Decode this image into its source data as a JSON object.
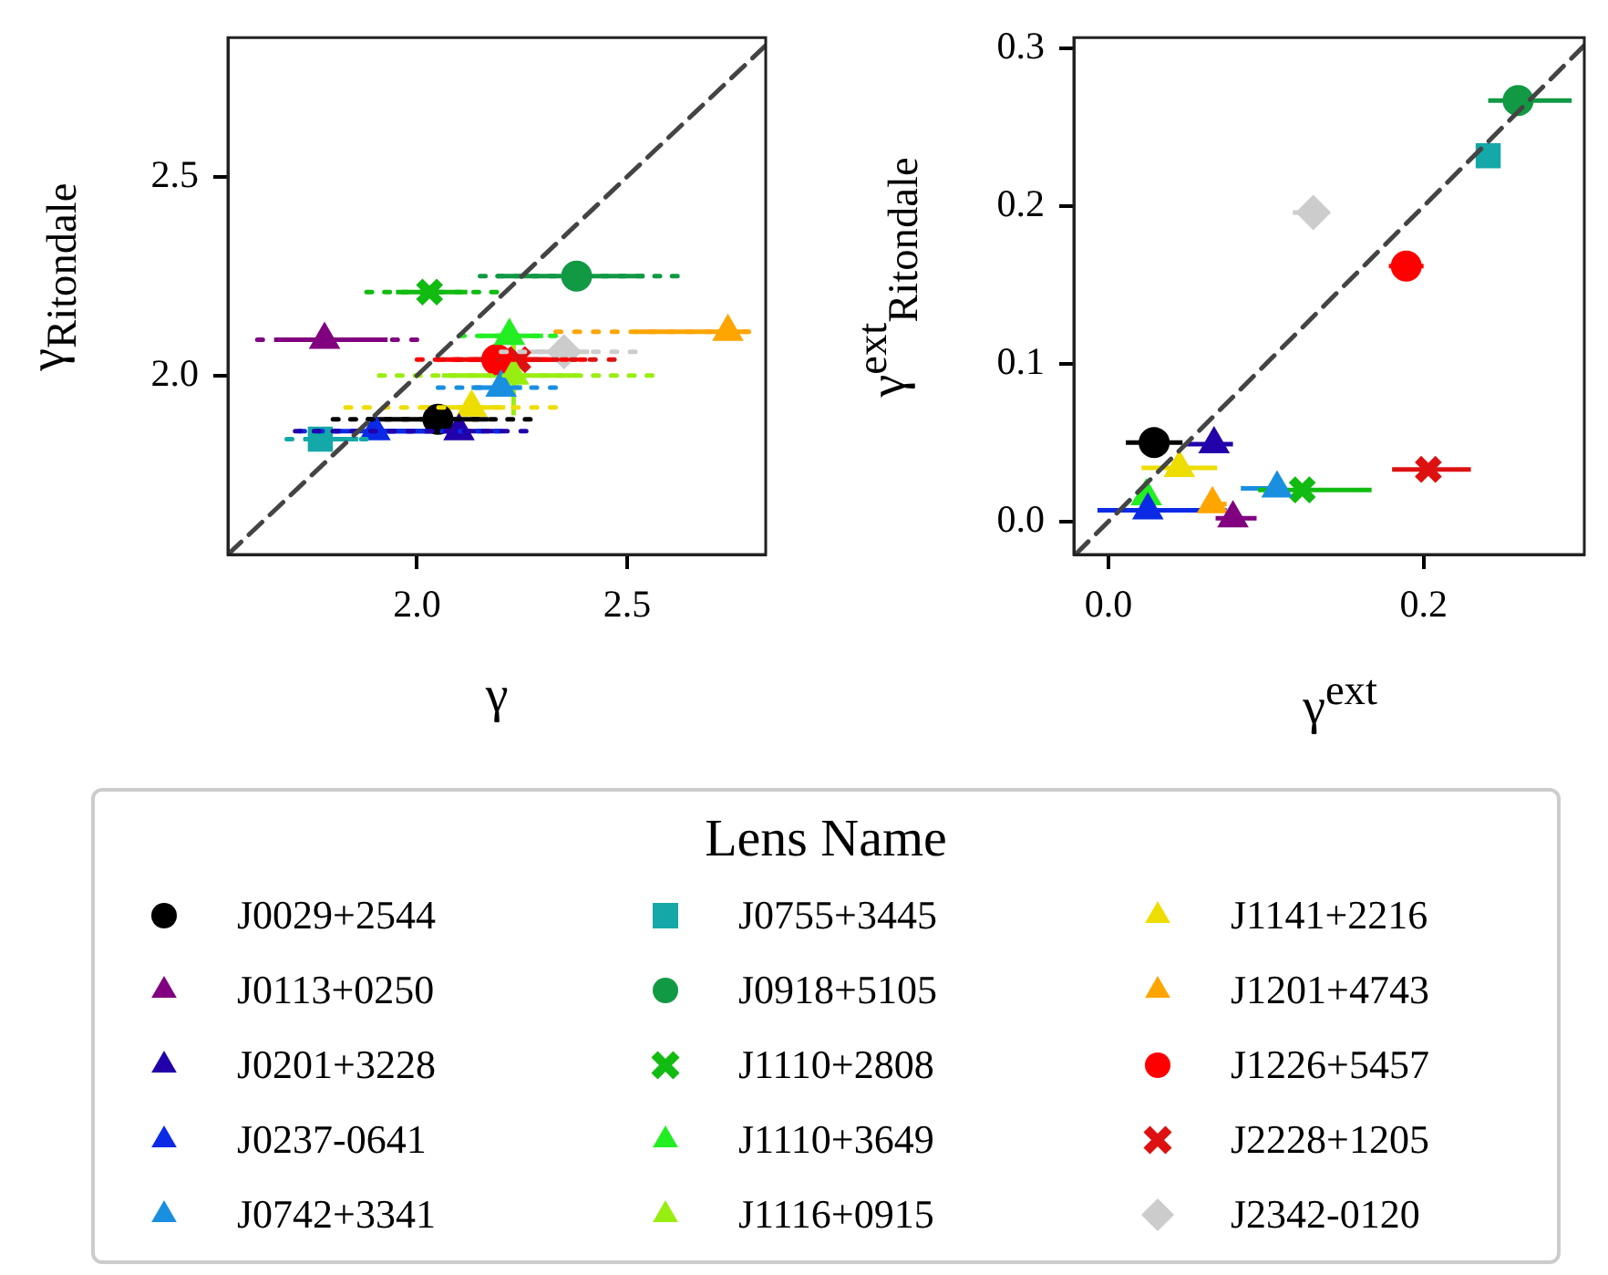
{
  "chart_data": [
    {
      "type": "scatter",
      "xlabel": "γ",
      "ylabel": "γ$_{Ritondale}$",
      "xlim": [
        1.55,
        2.83
      ],
      "ylim": [
        1.55,
        2.85
      ],
      "xticks": [
        {
          "value": 2,
          "label": "2.0"
        },
        2.5
      ],
      "yticks": [
        {
          "value": 2,
          "label": "2.0"
        },
        2.5
      ],
      "grid": false,
      "legend": "bottom",
      "legend_title": "Lens Name",
      "series": [
        {
          "type": "line",
          "color": "#444444",
          "line_style": "dashed",
          "marker": "none",
          "x": [
            1.55,
            2.83
          ],
          "values": [
            1.55,
            2.83
          ]
        },
        {
          "type": "line",
          "color": "#000000",
          "marker": "none",
          "line_style": "dotted",
          "x": [
            1.8,
            2.27
          ],
          "values": [
            1.89,
            1.89
          ]
        },
        {
          "type": "line",
          "color": "#800080",
          "marker": "none",
          "line_style": "dotted",
          "x": [
            1.62,
            2.0
          ],
          "values": [
            2.09,
            2.09
          ]
        },
        {
          "type": "line",
          "color": "#2200aa",
          "marker": "none",
          "line_style": "dotted",
          "x": [
            1.71,
            2.26
          ],
          "values": [
            1.86,
            1.86
          ]
        },
        {
          "type": "line",
          "color": "#0a2ae6",
          "marker": "none",
          "line_style": "dotted",
          "x": [
            1.72,
            2.2
          ],
          "values": [
            1.86,
            1.86
          ]
        },
        {
          "type": "line",
          "color": "#1a8fe0",
          "marker": "none",
          "line_style": "dotted",
          "x": [
            2.05,
            2.33
          ],
          "values": [
            1.97,
            1.97
          ]
        },
        {
          "type": "line",
          "color": "#14a8a8",
          "marker": "none",
          "line_style": "dotted",
          "x": [
            1.69,
            1.88
          ],
          "values": [
            1.84,
            1.84
          ]
        },
        {
          "type": "line",
          "color": "#119944",
          "marker": "none",
          "line_style": "dotted",
          "x": [
            2.15,
            2.62
          ],
          "values": [
            2.25,
            2.25
          ]
        },
        {
          "type": "line",
          "color": "#11bb11",
          "marker": "none",
          "line_style": "dotted",
          "x": [
            1.88,
            2.19
          ],
          "values": [
            2.21,
            2.21
          ]
        },
        {
          "type": "line",
          "color": "#22ee22",
          "marker": "none",
          "line_style": "dotted",
          "x": [
            2.1,
            2.33
          ],
          "values": [
            2.1,
            2.1
          ]
        },
        {
          "type": "line",
          "color": "#99ee11",
          "marker": "none",
          "line_style": "dotted",
          "x": [
            1.91,
            2.56
          ],
          "values": [
            2.0,
            2.0
          ]
        },
        {
          "type": "line",
          "color": "#eedd00",
          "marker": "none",
          "line_style": "dotted",
          "x": [
            1.83,
            2.33
          ],
          "values": [
            1.92,
            1.92
          ]
        },
        {
          "type": "line",
          "color": "#ffa500",
          "marker": "none",
          "line_style": "dotted",
          "x": [
            2.33,
            2.79
          ],
          "values": [
            2.11,
            2.11
          ]
        },
        {
          "type": "line",
          "color": "#ff0000",
          "marker": "none",
          "line_style": "dotted",
          "x": [
            2.0,
            2.4
          ],
          "values": [
            2.04,
            2.04
          ]
        },
        {
          "type": "line",
          "color": "#dd1111",
          "marker": "none",
          "line_style": "dotted",
          "x": [
            2.05,
            2.47
          ],
          "values": [
            2.04,
            2.04
          ]
        },
        {
          "type": "line",
          "color": "#cccccc",
          "marker": "none",
          "line_style": "dotted",
          "x": [
            2.2,
            2.52
          ],
          "values": [
            2.06,
            2.06
          ]
        },
        {
          "name": "J0029+2544",
          "color": "#000000",
          "marker": "circle",
          "x": [
            2.05
          ],
          "values": [
            1.89
          ],
          "xerrors": [
            [
              1.88,
              2.17
            ]
          ]
        },
        {
          "name": "J0113+0250",
          "color": "#800080",
          "marker": "triangle",
          "x": [
            1.78
          ],
          "values": [
            2.09
          ],
          "xerrors": [
            [
              1.66,
              1.93
            ]
          ]
        },
        {
          "name": "J0201+3228",
          "color": "#2200aa",
          "marker": "triangle",
          "x": [
            2.1
          ],
          "values": [
            1.86
          ],
          "xerrors": [
            [
              1.9,
              2.2
            ]
          ]
        },
        {
          "name": "J0237-0641",
          "color": "#0a2ae6",
          "marker": "triangle",
          "x": [
            1.9
          ],
          "values": [
            1.86
          ],
          "xerrors": [
            [
              1.8,
              2.05
            ]
          ]
        },
        {
          "name": "J0742+3341",
          "color": "#1a8fe0",
          "marker": "triangle",
          "x": [
            2.2
          ],
          "values": [
            1.97
          ],
          "xerrors": [
            [
              2.13,
              2.25
            ]
          ]
        },
        {
          "name": "J0755+3445",
          "color": "#14a8a8",
          "marker": "square",
          "x": [
            1.77
          ],
          "values": [
            1.84
          ],
          "xerrors": [
            [
              1.73,
              1.86
            ]
          ]
        },
        {
          "name": "J0918+5105",
          "color": "#119944",
          "marker": "circle",
          "x": [
            2.38
          ],
          "values": [
            2.25
          ],
          "xerrors": [
            [
              2.19,
              2.54
            ]
          ]
        },
        {
          "name": "J1110+2808",
          "color": "#11bb11",
          "marker": "cross",
          "x": [
            2.03
          ],
          "values": [
            2.21
          ],
          "xerrors": [
            [
              1.95,
              2.12
            ]
          ]
        },
        {
          "name": "J1110+3649",
          "color": "#22ee22",
          "marker": "triangle",
          "x": [
            2.22
          ],
          "values": [
            2.1
          ],
          "xerrors": [
            [
              2.15,
              2.3
            ]
          ]
        },
        {
          "name": "J1116+0915",
          "color": "#99ee11",
          "marker": "triangle",
          "x": [
            2.23
          ],
          "values": [
            2.0
          ],
          "xerrors": [
            [
              2.06,
              2.38
            ]
          ],
          "errors": [
            [
              1.9,
              2.1
            ]
          ]
        },
        {
          "name": "J1141+2216",
          "color": "#eedd00",
          "marker": "triangle",
          "x": [
            2.13
          ],
          "values": [
            1.92
          ],
          "xerrors": [
            [
              2.01,
              2.21
            ]
          ]
        },
        {
          "name": "J1201+4743",
          "color": "#ffa500",
          "marker": "triangle",
          "x": [
            2.74
          ],
          "values": [
            2.11
          ],
          "xerrors": [
            [
              2.52,
              2.79
            ]
          ]
        },
        {
          "name": "J1226+5457",
          "color": "#ff0000",
          "marker": "circle",
          "x": [
            2.19
          ],
          "values": [
            2.04
          ],
          "xerrors": [
            [
              2.06,
              2.3
            ]
          ]
        },
        {
          "name": "J2228+1205",
          "color": "#dd1111",
          "marker": "cross",
          "x": [
            2.24
          ],
          "values": [
            2.04
          ],
          "xerrors": [
            [
              2.12,
              2.38
            ]
          ]
        },
        {
          "name": "J2342-0120",
          "color": "#cccccc",
          "marker": "diamond",
          "x": [
            2.35
          ],
          "values": [
            2.06
          ],
          "xerrors": [
            [
              2.25,
              2.41
            ]
          ]
        }
      ]
    },
    {
      "type": "scatter",
      "xlabel": "γ$^{ext}$",
      "ylabel": "γ$^{ext}$$_{Ritondale}$",
      "xlim": [
        -0.022,
        0.302
      ],
      "ylim": [
        -0.021,
        0.307
      ],
      "xticks": [
        {
          "value": 0,
          "label": "0.0"
        },
        0.2
      ],
      "yticks": [
        {
          "value": 0,
          "label": "0.0"
        },
        0.1,
        0.2,
        0.3
      ],
      "grid": false,
      "series": [
        {
          "type": "line",
          "color": "#444444",
          "line_style": "dashed",
          "marker": "none",
          "x": [
            -0.021,
            0.302
          ],
          "values": [
            -0.021,
            0.302
          ]
        },
        {
          "color": "#000000",
          "marker": "circle",
          "x": [
            0.029
          ],
          "values": [
            0.05
          ],
          "xerrors": [
            [
              0.011,
              0.047
            ]
          ]
        },
        {
          "color": "#800080",
          "marker": "triangle",
          "x": [
            0.079
          ],
          "values": [
            0.002
          ],
          "xerrors": [
            [
              0.068,
              0.094
            ]
          ]
        },
        {
          "color": "#2200aa",
          "marker": "triangle",
          "x": [
            0.067
          ],
          "values": [
            0.049
          ],
          "xerrors": [
            [
              0.049,
              0.079
            ]
          ]
        },
        {
          "color": "#0a2ae6",
          "marker": "triangle",
          "x": [
            0.025
          ],
          "values": [
            0.007
          ],
          "xerrors": [
            [
              -0.007,
              0.075
            ]
          ]
        },
        {
          "color": "#1a8fe0",
          "marker": "triangle",
          "x": [
            0.107
          ],
          "values": [
            0.021
          ],
          "xerrors": [
            [
              0.084,
              0.113
            ]
          ]
        },
        {
          "color": "#14a8a8",
          "marker": "square",
          "x": [
            0.241
          ],
          "values": [
            0.232
          ]
        },
        {
          "color": "#119944",
          "marker": "circle",
          "x": [
            0.26
          ],
          "values": [
            0.267
          ],
          "xerrors": [
            [
              0.241,
              0.294
            ]
          ]
        },
        {
          "color": "#11bb11",
          "marker": "cross",
          "x": [
            0.123
          ],
          "values": [
            0.02
          ],
          "xerrors": [
            [
              0.095,
              0.167
            ]
          ]
        },
        {
          "color": "#22ee22",
          "marker": "triangle",
          "x": [
            0.024
          ],
          "values": [
            0.016
          ]
        },
        {
          "color": "#eedd00",
          "marker": "triangle",
          "x": [
            0.045
          ],
          "values": [
            0.034
          ],
          "xerrors": [
            [
              0.021,
              0.069
            ]
          ]
        },
        {
          "color": "#ffa500",
          "marker": "triangle",
          "x": [
            0.066
          ],
          "values": [
            0.011
          ],
          "xerrors": [
            [
              0.06,
              0.075
            ]
          ]
        },
        {
          "color": "#ff0000",
          "marker": "circle",
          "x": [
            0.189
          ],
          "values": [
            0.162
          ],
          "xerrors": [
            [
              0.178,
              0.2
            ]
          ]
        },
        {
          "color": "#dd1111",
          "marker": "cross",
          "x": [
            0.203
          ],
          "values": [
            0.033
          ],
          "xerrors": [
            [
              0.18,
              0.23
            ]
          ]
        },
        {
          "color": "#cccccc",
          "marker": "diamond",
          "x": [
            0.13
          ],
          "values": [
            0.196
          ],
          "xerrors": [
            [
              0.117,
              0.13
            ]
          ]
        }
      ]
    }
  ]
}
